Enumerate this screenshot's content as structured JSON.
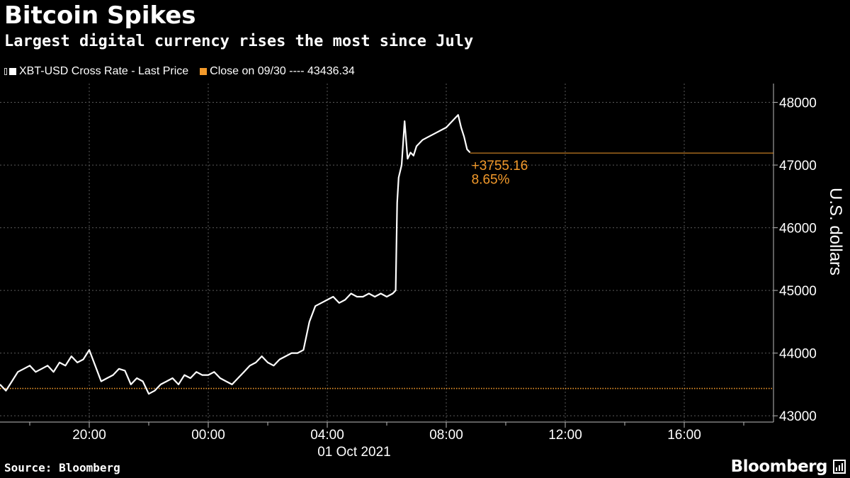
{
  "colors": {
    "background": "#000000",
    "series": "#ffffff",
    "reference": "#f39a2b",
    "grid": "#5a5a5a"
  },
  "header": {
    "title": "Bitcoin Spikes",
    "subtitle": "Largest digital currency rises the most since July"
  },
  "legend": {
    "series_label": "XBT-USD Cross Rate - Last Price",
    "reference_label": "Close on 09/30 ---- 43436.34"
  },
  "footer": {
    "source": "Source: Bloomberg",
    "brand": "Bloomberg"
  },
  "chart_data": {
    "type": "line",
    "title": "Bitcoin Spikes",
    "subtitle": "Largest digital currency rises the most since July",
    "ylabel": "U.S. dollars",
    "xlabel": "",
    "date_label": "01 Oct 2021",
    "x_unit": "hours relative to 00:00 on 01 Oct 2021",
    "xlim": [
      -7,
      19
    ],
    "ylim": [
      42900,
      48300
    ],
    "x_ticks": [
      {
        "x": -4,
        "label": "20:00"
      },
      {
        "x": 0,
        "label": "00:00"
      },
      {
        "x": 4,
        "label": "04:00"
      },
      {
        "x": 8,
        "label": "08:00"
      },
      {
        "x": 12,
        "label": "12:00"
      },
      {
        "x": 16,
        "label": "16:00"
      }
    ],
    "x_gridlines": [
      -4,
      0,
      4,
      8,
      12,
      16
    ],
    "x_minor_ticks": [
      -6,
      -2,
      2,
      6,
      10,
      14,
      18
    ],
    "y_ticks": [
      43000,
      44000,
      45000,
      46000,
      47000,
      48000
    ],
    "grid": true,
    "legend_position": "top-left",
    "series": [
      {
        "name": "XBT-USD Cross Rate - Last Price",
        "x": [
          -7,
          -6.8,
          -6.6,
          -6.4,
          -6.2,
          -6.0,
          -5.8,
          -5.6,
          -5.4,
          -5.2,
          -5.0,
          -4.8,
          -4.6,
          -4.4,
          -4.2,
          -4.0,
          -3.8,
          -3.6,
          -3.4,
          -3.2,
          -3.0,
          -2.8,
          -2.6,
          -2.4,
          -2.2,
          -2.0,
          -1.8,
          -1.6,
          -1.4,
          -1.2,
          -1.0,
          -0.8,
          -0.6,
          -0.4,
          -0.2,
          0.0,
          0.2,
          0.4,
          0.6,
          0.8,
          1.0,
          1.2,
          1.4,
          1.6,
          1.8,
          2.0,
          2.2,
          2.4,
          2.6,
          2.8,
          3.0,
          3.2,
          3.4,
          3.6,
          3.8,
          4.0,
          4.2,
          4.4,
          4.6,
          4.8,
          5.0,
          5.2,
          5.4,
          5.6,
          5.8,
          6.0,
          6.2,
          6.3,
          6.35,
          6.4,
          6.5,
          6.6,
          6.7,
          6.8,
          6.9,
          7.0,
          7.2,
          7.4,
          7.6,
          7.8,
          8.0,
          8.2,
          8.4,
          8.5,
          8.6,
          8.7,
          8.8
        ],
        "values": [
          43500,
          43400,
          43550,
          43700,
          43750,
          43800,
          43700,
          43750,
          43800,
          43700,
          43850,
          43800,
          43950,
          43850,
          43900,
          44050,
          43800,
          43550,
          43600,
          43650,
          43750,
          43720,
          43500,
          43600,
          43550,
          43350,
          43400,
          43500,
          43550,
          43600,
          43500,
          43650,
          43600,
          43700,
          43650,
          43650,
          43700,
          43600,
          43550,
          43500,
          43600,
          43700,
          43800,
          43850,
          43950,
          43850,
          43800,
          43900,
          43950,
          44000,
          44000,
          44050,
          44500,
          44750,
          44800,
          44850,
          44900,
          44800,
          44850,
          44950,
          44900,
          44900,
          44950,
          44900,
          44950,
          44900,
          44950,
          45000,
          46400,
          46800,
          47000,
          47700,
          47100,
          47200,
          47150,
          47300,
          47400,
          47450,
          47500,
          47550,
          47600,
          47700,
          47800,
          47600,
          47450,
          47250,
          47200
        ]
      }
    ],
    "reference_line": {
      "name": "Close on 09/30",
      "value": 43436.34,
      "style": "dotted"
    },
    "last_value_line": {
      "value": 47191.5,
      "from_x": 8.8
    },
    "annotations": [
      {
        "text": "+3755.16",
        "x": 8.8,
        "y": 47000
      },
      {
        "text": "8.65%",
        "x": 8.8,
        "y": 46780
      }
    ]
  }
}
